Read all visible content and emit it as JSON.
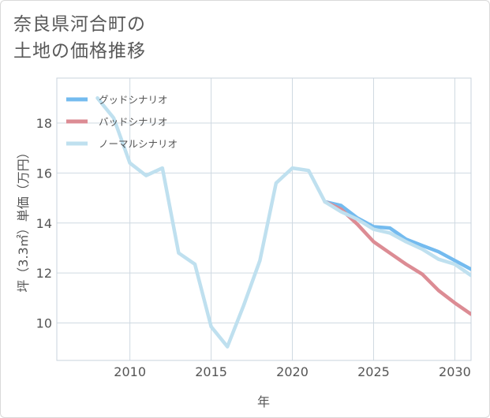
{
  "title": {
    "line1": "奈良県河合町の",
    "line2": "土地の価格推移"
  },
  "chart_data": {
    "type": "line",
    "xlabel": "年",
    "ylabel": "坪（3.3㎡）単価（万円）",
    "xlim": [
      2005.5,
      2031
    ],
    "ylim": [
      8.5,
      19.8
    ],
    "xticks": [
      2010,
      2015,
      2020,
      2025,
      2030
    ],
    "yticks": [
      10,
      12,
      14,
      16,
      18
    ],
    "grid": true,
    "legend_position": "top-left",
    "series": [
      {
        "name": "グッドシナリオ",
        "color": "#74bbef",
        "x": [
          2022,
          2023,
          2024,
          2025,
          2026,
          2027,
          2028,
          2029,
          2030,
          2031
        ],
        "values": [
          14.85,
          14.7,
          14.2,
          13.85,
          13.8,
          13.35,
          13.1,
          12.85,
          12.5,
          12.15
        ]
      },
      {
        "name": "バッドシナリオ",
        "color": "#dc8c94",
        "x": [
          2022,
          2023,
          2024,
          2025,
          2026,
          2027,
          2028,
          2029,
          2030,
          2031
        ],
        "values": [
          14.85,
          14.55,
          13.95,
          13.25,
          12.8,
          12.35,
          11.95,
          11.3,
          10.8,
          10.35
        ]
      },
      {
        "name": "ノーマルシナリオ",
        "color": "#bfe0ef",
        "x": [
          2008,
          2009,
          2010,
          2011,
          2012,
          2013,
          2014,
          2015,
          2016,
          2017,
          2018,
          2019,
          2020,
          2021,
          2022,
          2023,
          2024,
          2025,
          2026,
          2027,
          2028,
          2029,
          2030,
          2031
        ],
        "values": [
          19.0,
          18.2,
          16.4,
          15.9,
          16.2,
          12.8,
          12.35,
          9.85,
          9.05,
          10.7,
          12.5,
          15.6,
          16.2,
          16.1,
          14.85,
          14.45,
          14.15,
          13.75,
          13.6,
          13.25,
          12.95,
          12.55,
          12.35,
          11.9
        ]
      }
    ]
  }
}
